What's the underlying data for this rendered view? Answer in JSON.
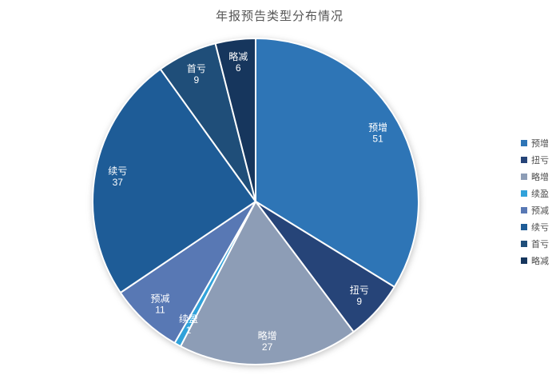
{
  "chart_data": {
    "type": "pie",
    "title": "年报预告类型分布情况",
    "categories": [
      "预增",
      "扭亏",
      "略增",
      "续盈",
      "预减",
      "续亏",
      "首亏",
      "略减"
    ],
    "values": [
      51,
      9,
      27,
      1,
      11,
      37,
      9,
      6
    ],
    "colors": [
      "#2E75B6",
      "#264478",
      "#8D9DB6",
      "#31A2DA",
      "#5878B4",
      "#1E5C97",
      "#1F4E79",
      "#16365D"
    ],
    "total": 151,
    "start_angle_deg": 0,
    "direction": "clockwise",
    "label_position": "inside",
    "label_color": "#ffffff",
    "legend_position": "right",
    "legend": [
      "预增",
      "扭亏",
      "略增",
      "续盈",
      "预减",
      "续亏",
      "首亏",
      "略减"
    ]
  }
}
